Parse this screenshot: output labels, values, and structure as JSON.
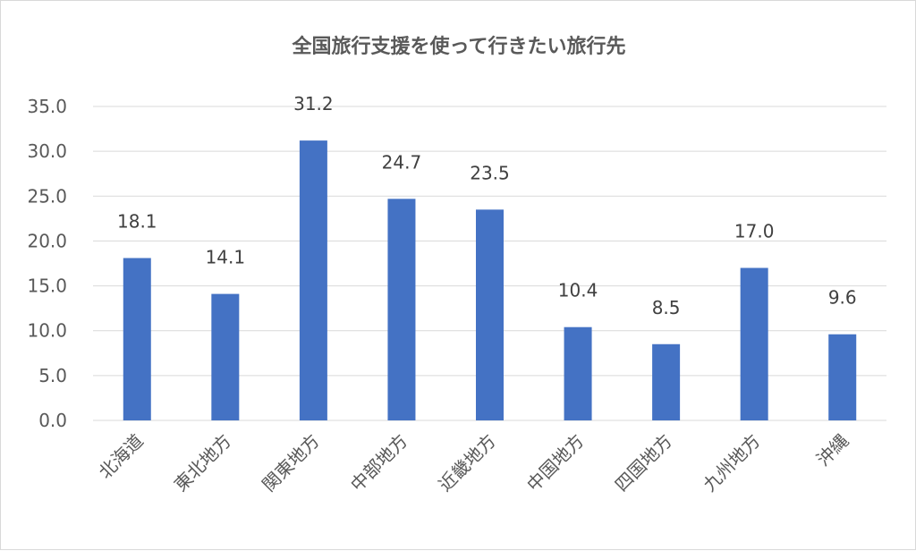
{
  "chart_data": {
    "type": "bar",
    "title": "全国旅行支援を使って行きたい旅行先",
    "categories": [
      "北海道",
      "東北地方",
      "関東地方",
      "中部地方",
      "近畿地方",
      "中国地方",
      "四国地方",
      "九州地方",
      "沖縄"
    ],
    "values": [
      18.1,
      14.1,
      31.2,
      24.7,
      23.5,
      10.4,
      8.5,
      17.0,
      9.6
    ],
    "value_labels": [
      "18.1",
      "14.1",
      "31.2",
      "24.7",
      "23.5",
      "10.4",
      "8.5",
      "17.0",
      "9.6"
    ],
    "ylim": [
      0,
      35
    ],
    "yticks": [
      "0.0",
      "5.0",
      "10.0",
      "15.0",
      "20.0",
      "25.0",
      "30.0",
      "35.0"
    ],
    "ytick_values": [
      0,
      5,
      10,
      15,
      20,
      25,
      30,
      35
    ],
    "xlabel": "",
    "ylabel": "",
    "grid": true,
    "legend": "none",
    "bar_color": "#4472c4"
  }
}
